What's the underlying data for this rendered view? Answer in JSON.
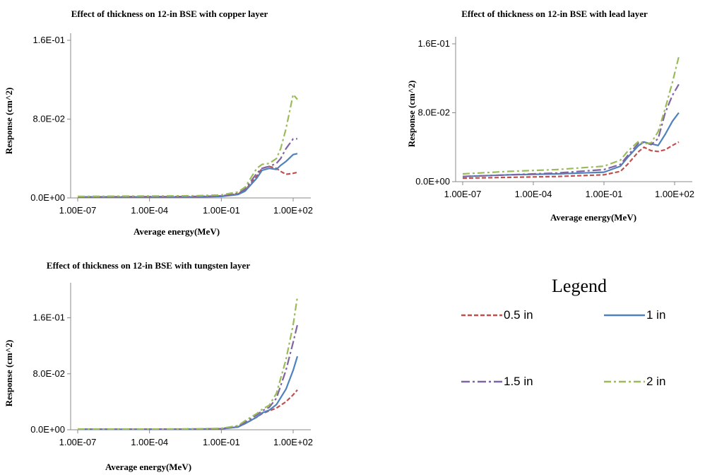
{
  "chart_data": [
    {
      "type": "line",
      "title": "Effect of thickness on 12-in BSE with copper layer",
      "xlabel": "Average energy(MeV)",
      "ylabel": "Response (cm^2)",
      "xscale": "log",
      "xlim": [
        1e-07,
        100
      ],
      "ylim": [
        0,
        0.16
      ],
      "xticks": [
        "1.00E-07",
        "1.00E-04",
        "1.00E-01",
        "1.00E+02"
      ],
      "yticks": [
        "0.0E+00",
        "8.0E-02",
        "1.6E-01"
      ],
      "yticks_values": [
        0,
        0.08,
        0.16
      ],
      "series": [
        {
          "name": "0.5 in",
          "x": [
            1e-07,
            1e-05,
            0.001,
            0.01,
            0.1,
            0.5,
            1,
            3,
            5,
            10,
            20,
            30,
            50,
            100,
            150
          ],
          "y": [
            0.001,
            0.001,
            0.001,
            0.0012,
            0.002,
            0.004,
            0.008,
            0.022,
            0.03,
            0.032,
            0.03,
            0.027,
            0.024,
            0.025,
            0.026
          ]
        },
        {
          "name": "1 in",
          "x": [
            1e-07,
            1e-05,
            0.001,
            0.01,
            0.1,
            0.5,
            1,
            3,
            5,
            10,
            20,
            30,
            50,
            100,
            150
          ],
          "y": [
            0.0008,
            0.0008,
            0.0009,
            0.001,
            0.0015,
            0.0035,
            0.007,
            0.02,
            0.028,
            0.03,
            0.029,
            0.033,
            0.037,
            0.044,
            0.045
          ]
        },
        {
          "name": "1.5 in",
          "x": [
            1e-07,
            1e-05,
            0.001,
            0.01,
            0.1,
            0.5,
            1,
            3,
            5,
            10,
            20,
            30,
            50,
            100,
            150
          ],
          "y": [
            0.001,
            0.0012,
            0.0013,
            0.0015,
            0.002,
            0.0045,
            0.009,
            0.025,
            0.03,
            0.032,
            0.035,
            0.04,
            0.05,
            0.06,
            0.06
          ]
        },
        {
          "name": "2 in",
          "x": [
            1e-07,
            1e-05,
            0.001,
            0.01,
            0.1,
            0.5,
            1,
            3,
            5,
            10,
            20,
            30,
            50,
            100,
            150
          ],
          "y": [
            0.0015,
            0.0018,
            0.002,
            0.0022,
            0.003,
            0.006,
            0.011,
            0.03,
            0.034,
            0.035,
            0.04,
            0.05,
            0.07,
            0.105,
            0.1
          ]
        }
      ]
    },
    {
      "type": "line",
      "title": "Effect of thickness on 12-in BSE with lead layer",
      "xlabel": "Average energy(MeV)",
      "ylabel": "Response (cm^2)",
      "xscale": "log",
      "xlim": [
        1e-07,
        100
      ],
      "ylim": [
        0,
        0.16
      ],
      "xticks": [
        "1.00E-07",
        "1.00E-04",
        "1.00E-01",
        "1.00E+02"
      ],
      "yticks": [
        "0.0E+00",
        "8.0E-02",
        "1.6E-01"
      ],
      "yticks_values": [
        0,
        0.08,
        0.16
      ],
      "series": [
        {
          "name": "0.5 in",
          "x": [
            1e-07,
            1e-05,
            0.001,
            0.01,
            0.1,
            0.5,
            1,
            3,
            5,
            10,
            20,
            40,
            80,
            150
          ],
          "y": [
            0.004,
            0.005,
            0.006,
            0.007,
            0.008,
            0.012,
            0.02,
            0.035,
            0.04,
            0.036,
            0.035,
            0.037,
            0.042,
            0.046
          ]
        },
        {
          "name": "1 in",
          "x": [
            1e-07,
            1e-05,
            0.001,
            0.01,
            0.1,
            0.5,
            1,
            3,
            5,
            10,
            20,
            40,
            80,
            150
          ],
          "y": [
            0.006,
            0.008,
            0.009,
            0.01,
            0.011,
            0.018,
            0.028,
            0.042,
            0.046,
            0.044,
            0.042,
            0.055,
            0.07,
            0.08
          ]
        },
        {
          "name": "1.5 in",
          "x": [
            1e-07,
            1e-05,
            0.001,
            0.01,
            0.1,
            0.5,
            1,
            3,
            5,
            10,
            20,
            40,
            80,
            150
          ],
          "y": [
            0.006,
            0.008,
            0.01,
            0.012,
            0.014,
            0.02,
            0.03,
            0.045,
            0.046,
            0.043,
            0.05,
            0.08,
            0.1,
            0.113
          ]
        },
        {
          "name": "2 in",
          "x": [
            1e-07,
            1e-05,
            0.001,
            0.01,
            0.1,
            0.5,
            1,
            3,
            5,
            10,
            20,
            40,
            80,
            150
          ],
          "y": [
            0.009,
            0.012,
            0.014,
            0.016,
            0.018,
            0.025,
            0.035,
            0.047,
            0.044,
            0.045,
            0.058,
            0.085,
            0.115,
            0.145
          ]
        }
      ]
    },
    {
      "type": "line",
      "title": "Effect of thickness on 12-in BSE with tungsten layer",
      "xlabel": "Average energy(MeV)",
      "ylabel": "Response (cm^2)",
      "xscale": "log",
      "xlim": [
        1e-07,
        100
      ],
      "ylim": [
        0,
        0.2
      ],
      "xticks": [
        "1.00E-07",
        "1.00E-04",
        "1.00E-01",
        "1.00E+02"
      ],
      "yticks": [
        "0.0E+00",
        "8.0E-02",
        "1.6E-01"
      ],
      "yticks_values": [
        0,
        0.08,
        0.16
      ],
      "series": [
        {
          "name": "0.5 in",
          "x": [
            1e-07,
            1e-05,
            0.001,
            0.01,
            0.1,
            0.5,
            1,
            3,
            5,
            10,
            20,
            50,
            100,
            150
          ],
          "y": [
            0.0008,
            0.0008,
            0.0009,
            0.001,
            0.0015,
            0.004,
            0.009,
            0.018,
            0.023,
            0.027,
            0.031,
            0.04,
            0.05,
            0.057
          ]
        },
        {
          "name": "1 in",
          "x": [
            1e-07,
            1e-05,
            0.001,
            0.01,
            0.1,
            0.5,
            1,
            3,
            5,
            10,
            20,
            50,
            100,
            150
          ],
          "y": [
            0.0006,
            0.0006,
            0.0007,
            0.0008,
            0.0012,
            0.004,
            0.009,
            0.018,
            0.024,
            0.028,
            0.036,
            0.058,
            0.085,
            0.105
          ]
        },
        {
          "name": "1.5 in",
          "x": [
            1e-07,
            1e-05,
            0.001,
            0.01,
            0.1,
            0.5,
            1,
            3,
            5,
            10,
            20,
            50,
            100,
            150
          ],
          "y": [
            0.0008,
            0.0008,
            0.0009,
            0.001,
            0.0015,
            0.005,
            0.011,
            0.021,
            0.027,
            0.032,
            0.045,
            0.085,
            0.125,
            0.15
          ]
        },
        {
          "name": "2 in",
          "x": [
            1e-07,
            1e-05,
            0.001,
            0.01,
            0.1,
            0.5,
            1,
            3,
            5,
            10,
            20,
            50,
            100,
            150
          ],
          "y": [
            0.001,
            0.001,
            0.0011,
            0.0013,
            0.002,
            0.006,
            0.013,
            0.023,
            0.029,
            0.035,
            0.052,
            0.1,
            0.15,
            0.19
          ]
        }
      ]
    }
  ],
  "legend": {
    "title": "Legend",
    "items": [
      {
        "label": "0.5 in",
        "color": "#c0504d",
        "dash": "6,3"
      },
      {
        "label": "1 in",
        "color": "#4f81bd",
        "dash": ""
      },
      {
        "label": "1.5 in",
        "color": "#8064a2",
        "dash": "12,4,3,4"
      },
      {
        "label": "2 in",
        "color": "#9bbb59",
        "dash": "10,4,3,4"
      }
    ]
  }
}
